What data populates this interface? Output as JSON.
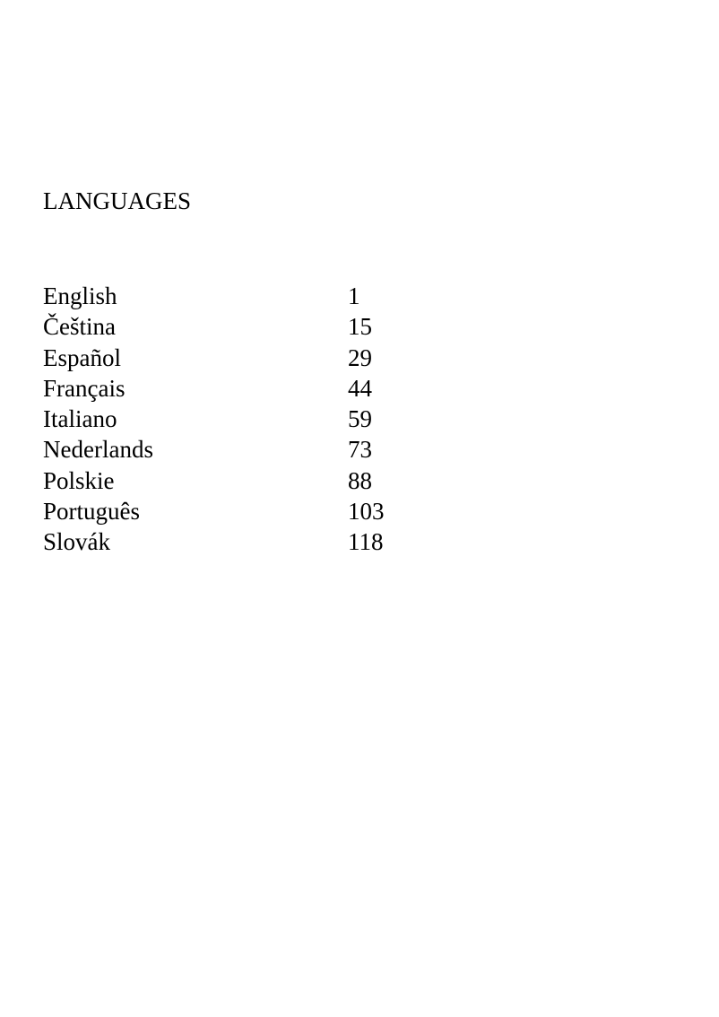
{
  "title": "LANGUAGES",
  "entries": [
    {
      "language": "English",
      "page": "1"
    },
    {
      "language": "Čeština",
      "page": "15"
    },
    {
      "language": "Español",
      "page": "29"
    },
    {
      "language": "Français",
      "page": "44"
    },
    {
      "language": "Italiano",
      "page": "59"
    },
    {
      "language": "Nederlands",
      "page": "73"
    },
    {
      "language": "Polskie",
      "page": "88"
    },
    {
      "language": "Português",
      "page": "103"
    },
    {
      "language": "Slovák",
      "page": "118"
    }
  ]
}
